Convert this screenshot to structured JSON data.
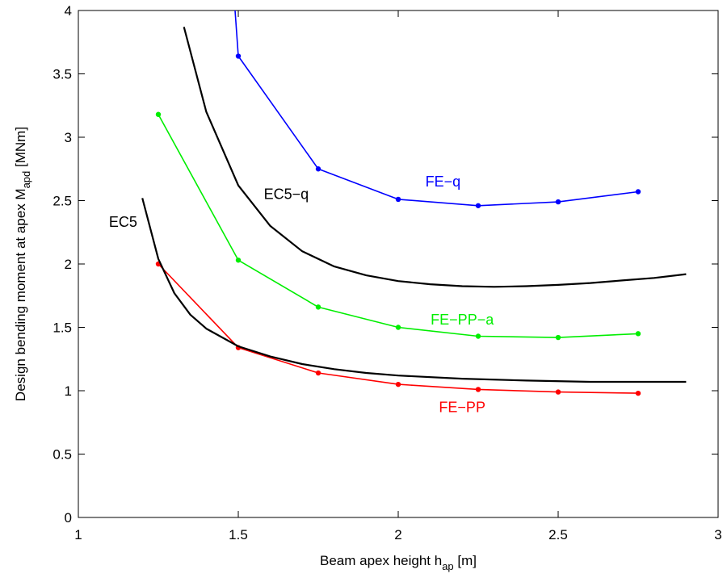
{
  "chart_data": {
    "type": "line",
    "xlabel": {
      "main": "Beam apex height  h",
      "sub": "ap",
      "unit": "  [m]"
    },
    "ylabel": {
      "main": "Design bending moment at apex  M",
      "sub": "apd",
      "unit": "  [MNm]"
    },
    "xlim": [
      1,
      3
    ],
    "ylim": [
      0,
      4
    ],
    "xticks": [
      1,
      1.5,
      2,
      2.5,
      3
    ],
    "yticks": [
      0,
      0.5,
      1,
      1.5,
      2,
      2.5,
      3,
      3.5,
      4
    ],
    "xtick_labels": [
      "1",
      "1.5",
      "2",
      "2.5",
      "3"
    ],
    "ytick_labels": [
      "0",
      "0.5",
      "1",
      "1.5",
      "2",
      "2.5",
      "3",
      "3.5",
      "4"
    ],
    "grid": false,
    "series": [
      {
        "name": "FE−q",
        "color": "#0000ff",
        "markers": true,
        "x": [
          1.49,
          1.5,
          1.75,
          2.0,
          2.25,
          2.5,
          2.75
        ],
        "y": [
          4.0,
          3.64,
          2.75,
          2.51,
          2.46,
          2.49,
          2.57
        ],
        "label_at": [
          2.14,
          2.65
        ]
      },
      {
        "name": "FE−PP−a",
        "color": "#00ee00",
        "markers": true,
        "x": [
          1.25,
          1.5,
          1.75,
          2.0,
          2.25,
          2.5,
          2.75
        ],
        "y": [
          3.18,
          2.03,
          1.66,
          1.5,
          1.43,
          1.42,
          1.45
        ],
        "label_at": [
          2.2,
          1.56
        ]
      },
      {
        "name": "FE−PP",
        "color": "#ff0000",
        "markers": true,
        "x": [
          1.25,
          1.5,
          1.75,
          2.0,
          2.25,
          2.5,
          2.75
        ],
        "y": [
          2.0,
          1.34,
          1.14,
          1.05,
          1.01,
          0.99,
          0.98
        ],
        "label_at": [
          2.2,
          0.87
        ]
      },
      {
        "name": "EC5−q",
        "color": "#000000",
        "markers": false,
        "x": [
          1.33,
          1.4,
          1.5,
          1.6,
          1.7,
          1.8,
          1.9,
          2.0,
          2.1,
          2.2,
          2.3,
          2.4,
          2.5,
          2.6,
          2.7,
          2.8,
          2.9
        ],
        "y": [
          3.87,
          3.2,
          2.62,
          2.3,
          2.1,
          1.98,
          1.91,
          1.865,
          1.84,
          1.825,
          1.82,
          1.825,
          1.835,
          1.85,
          1.87,
          1.89,
          1.92
        ],
        "label_at": [
          1.65,
          2.55
        ]
      },
      {
        "name": "EC5",
        "color": "#000000",
        "markers": false,
        "x": [
          1.2,
          1.25,
          1.3,
          1.35,
          1.4,
          1.5,
          1.6,
          1.7,
          1.8,
          1.9,
          2.0,
          2.2,
          2.4,
          2.6,
          2.8,
          2.9
        ],
        "y": [
          2.52,
          2.04,
          1.77,
          1.6,
          1.49,
          1.35,
          1.27,
          1.21,
          1.17,
          1.14,
          1.12,
          1.095,
          1.08,
          1.07,
          1.07,
          1.07
        ],
        "label_at": [
          1.14,
          2.33
        ]
      }
    ]
  }
}
